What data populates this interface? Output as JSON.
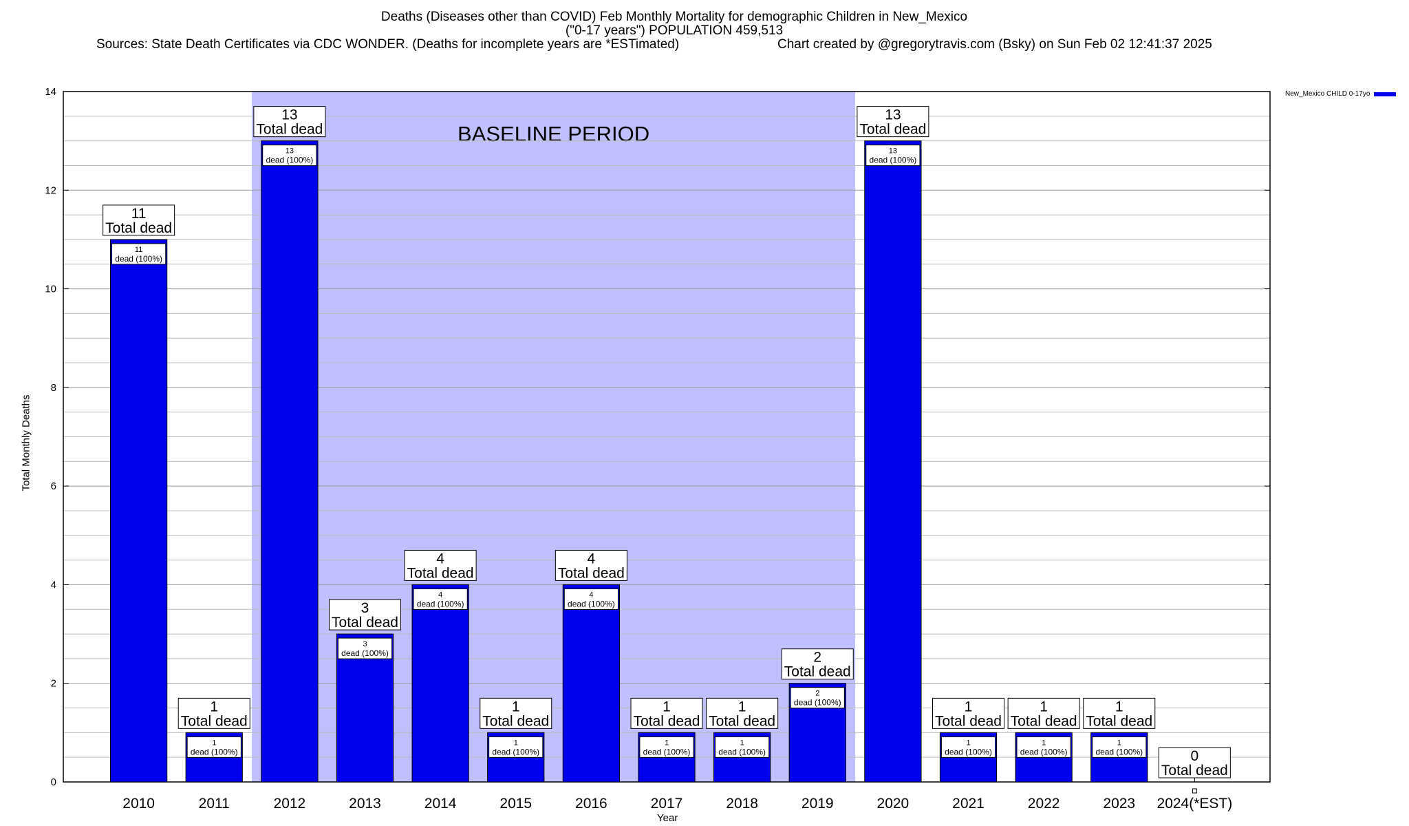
{
  "header": {
    "title": "Deaths (Diseases other than COVID) Feb Monthly Mortality for demographic Children in New_Mexico",
    "subtitle": "(\"0-17 years\") POPULATION 459,513",
    "sources": "Sources: State Death Certificates via CDC WONDER. (Deaths for incomplete years are *ESTimated)",
    "credit": "Chart created by @gregorytravis.com (Bsky) on Sun Feb 02 12:41:37 2025"
  },
  "chart_data": {
    "type": "bar",
    "xlabel": "Year",
    "ylabel": "Total Monthly Deaths",
    "ylim": [
      0,
      14
    ],
    "yticks": [
      0,
      2,
      4,
      6,
      8,
      10,
      12,
      14
    ],
    "grid": true,
    "legend_position": "top-right",
    "categories": [
      "2010",
      "2011",
      "2012",
      "2013",
      "2014",
      "2015",
      "2016",
      "2017",
      "2018",
      "2019",
      "2020",
      "2021",
      "2022",
      "2023",
      "2024(*EST)"
    ],
    "series": [
      {
        "name": "New_Mexico CHILD 0-17yo",
        "color": "#0000ee",
        "values": [
          11,
          1,
          13,
          3,
          4,
          1,
          4,
          1,
          1,
          2,
          13,
          1,
          1,
          1,
          0
        ]
      }
    ],
    "total_label": "Total dead",
    "inner_label_suffix": "dead (100%)",
    "baseline": {
      "label": "BASELINE PERIOD",
      "from_category": "2012",
      "to_category": "2019",
      "color": "#c0c0ff"
    }
  }
}
